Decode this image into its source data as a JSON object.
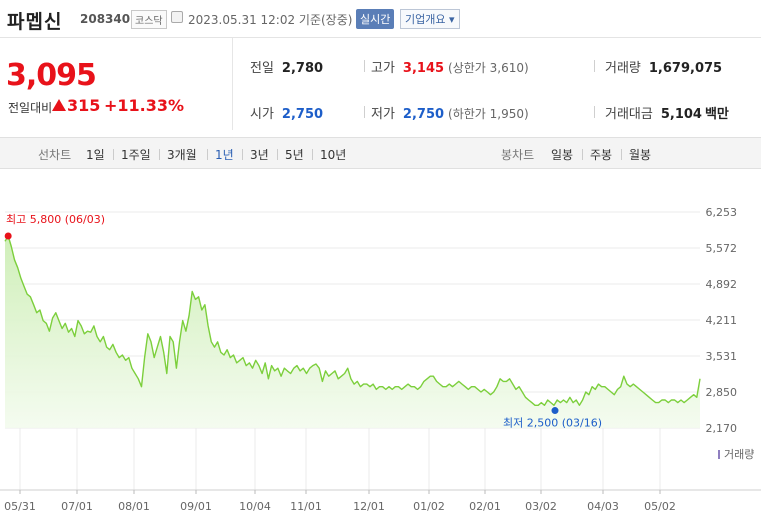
{
  "header": {
    "name": "파멥신",
    "code": "208340",
    "market": "코스닥",
    "datetime": "2023.05.31 12:02 기준(장중)",
    "realtime": "실시간",
    "company_info": "기업개요 ▾"
  },
  "quote": {
    "price": "3,095",
    "change_label": "전일대비",
    "change": "315",
    "change_rate": "+11.33%"
  },
  "stats": {
    "prev": {
      "label": "전일",
      "value": "2,780"
    },
    "high": {
      "label": "고가",
      "value": "3,145",
      "sub": "(상한가 3,610)"
    },
    "volume": {
      "label": "거래량",
      "value": "1,679,075"
    },
    "open": {
      "label": "시가",
      "value": "2,750"
    },
    "low": {
      "label": "저가",
      "value": "2,750",
      "sub": "(하한가 1,950)"
    },
    "amount": {
      "label": "거래대금",
      "value": "5,104",
      "unit": "백만"
    }
  },
  "tabs": {
    "line_caption": "선차트",
    "line_periods": [
      "1일",
      "1주일",
      "3개월",
      "1년",
      "3년",
      "5년",
      "10년"
    ],
    "active_period": "1년",
    "candle_caption": "봉차트",
    "candle_periods": [
      "일봉",
      "주봉",
      "월봉"
    ]
  },
  "colors": {
    "up": "#e8121a",
    "down": "#1d5ec9",
    "line": "#7ccf3c",
    "fill_top": "#d6f2c0",
    "active_tab": "#2a5fb3"
  },
  "chart_data": {
    "type": "area",
    "x_ticks": [
      "05/31",
      "07/01",
      "08/01",
      "09/01",
      "10/04",
      "11/01",
      "12/01",
      "01/02",
      "02/01",
      "03/02",
      "04/03",
      "05/02"
    ],
    "y_ticks": [
      "6,253",
      "5,572",
      "4,892",
      "4,211",
      "3,531",
      "2,850",
      "2,170"
    ],
    "ylim": [
      2170,
      6253
    ],
    "price_series": [
      5700,
      5800,
      5600,
      5350,
      5200,
      5000,
      4850,
      4700,
      4650,
      4500,
      4350,
      4400,
      4200,
      4150,
      4000,
      4250,
      4350,
      4200,
      4050,
      4150,
      3980,
      4050,
      3900,
      4200,
      4100,
      3950,
      4000,
      3980,
      4100,
      3900,
      3800,
      3900,
      3700,
      3650,
      3750,
      3600,
      3500,
      3550,
      3450,
      3500,
      3300,
      3200,
      3100,
      2950,
      3500,
      3950,
      3800,
      3500,
      3700,
      3900,
      3600,
      3200,
      3900,
      3800,
      3300,
      3800,
      4200,
      4000,
      4300,
      4750,
      4600,
      4650,
      4400,
      4500,
      4100,
      3800,
      3700,
      3800,
      3600,
      3550,
      3650,
      3500,
      3550,
      3400,
      3450,
      3500,
      3350,
      3400,
      3300,
      3450,
      3350,
      3200,
      3400,
      3100,
      3350,
      3250,
      3300,
      3150,
      3300,
      3250,
      3200,
      3300,
      3350,
      3250,
      3300,
      3200,
      3300,
      3350,
      3380,
      3300,
      3050,
      3250,
      3150,
      3200,
      3250,
      3100,
      3150,
      3200,
      3300,
      3100,
      3000,
      3050,
      2950,
      3000,
      3000,
      2950,
      3000,
      2900,
      2950,
      2950,
      2900,
      2950,
      2900,
      2950,
      2950,
      2900,
      2950,
      3000,
      2950,
      2950,
      2900,
      2950,
      3050,
      3100,
      3150,
      3150,
      3050,
      3000,
      2950,
      2950,
      3000,
      2950,
      3000,
      3050,
      3000,
      2950,
      2900,
      2950,
      2950,
      2900,
      2850,
      2900,
      2850,
      2800,
      2850,
      2950,
      3100,
      3050,
      3050,
      3100,
      3000,
      2900,
      2950,
      2850,
      2750,
      2700,
      2650,
      2600,
      2600,
      2650,
      2600,
      2700,
      2650,
      2600,
      2700,
      2650,
      2700,
      2650,
      2750,
      2650,
      2700,
      2600,
      2700,
      2850,
      2800,
      2950,
      2900,
      3000,
      2950,
      2950,
      2900,
      2850,
      2800,
      2900,
      2950,
      3150,
      3000,
      2950,
      3000,
      2950,
      2900,
      2850,
      2800,
      2750,
      2700,
      2650,
      2650,
      2700,
      2700,
      2650,
      2700,
      2700,
      2650,
      2700,
      2650,
      2700,
      2750,
      2800,
      2750,
      3100
    ],
    "high": {
      "label": "최고 5,800 (06/03)",
      "value": 5800,
      "date": "06/03"
    },
    "low": {
      "label": "최저 2,500 (03/16)",
      "value": 2500,
      "date": "03/16"
    },
    "volume_legend": "거래량",
    "volume_series": [
      0,
      0,
      0,
      0,
      0,
      0,
      0,
      0,
      0,
      0,
      0,
      0,
      0,
      0,
      0,
      0,
      0,
      0,
      0,
      0,
      0,
      0,
      0,
      0,
      0,
      0,
      0,
      0,
      0,
      0,
      0,
      0,
      0,
      0,
      0,
      0,
      0,
      0,
      0,
      0,
      0,
      0,
      0,
      0,
      0,
      0,
      0,
      0,
      0,
      0,
      0,
      0,
      0,
      0,
      0,
      0,
      0,
      0,
      0,
      0,
      0,
      0,
      0,
      0,
      0,
      0,
      0,
      0,
      0,
      0,
      0,
      0,
      0,
      0,
      0,
      0,
      0,
      0,
      0,
      0,
      0,
      0,
      0,
      0,
      0,
      0,
      0,
      0,
      0,
      0,
      0,
      0,
      0,
      0,
      0,
      0,
      0,
      0,
      0,
      0,
      0,
      0,
      0,
      0,
      0,
      0,
      0,
      0,
      0,
      0,
      0,
      0,
      0,
      0,
      0,
      0,
      0,
      0,
      0,
      0,
      0,
      0,
      0,
      0,
      0,
      0,
      0,
      0,
      0,
      0,
      0,
      0,
      0,
      0,
      0,
      0,
      0,
      0,
      0,
      0,
      0,
      0,
      0,
      0,
      0,
      0,
      0,
      0,
      0,
      0,
      0,
      0,
      0,
      0,
      0,
      0,
      0,
      0,
      0,
      0,
      0,
      0,
      0,
      0,
      0,
      0,
      0,
      0,
      0,
      0,
      0,
      0,
      0,
      0,
      0,
      0,
      0,
      0,
      0,
      0,
      0,
      0,
      0,
      0,
      0,
      0,
      0,
      0,
      0,
      0,
      0,
      0,
      0,
      0,
      0,
      0,
      0,
      0,
      0,
      0,
      0,
      0,
      0,
      0,
      0,
      0,
      0,
      0,
      0,
      0,
      0,
      0,
      0,
      0,
      0,
      0
    ]
  }
}
